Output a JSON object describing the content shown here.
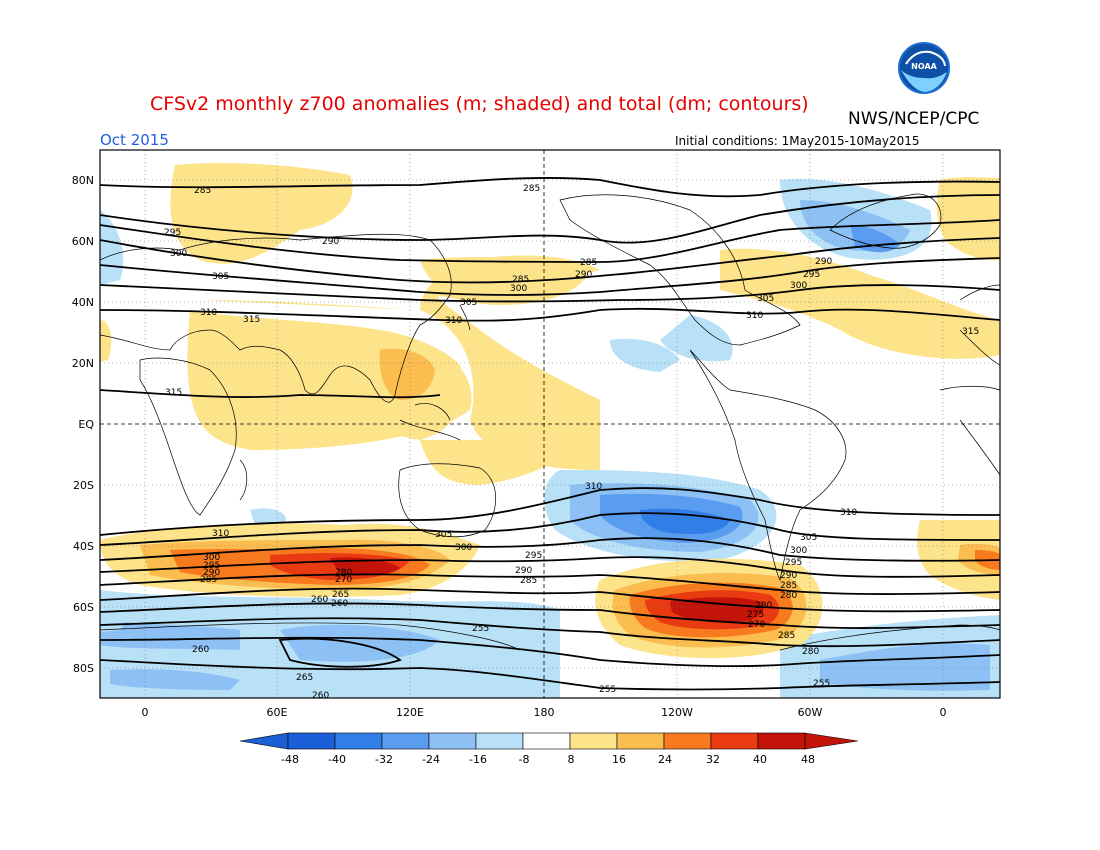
{
  "header": {
    "title": "CFSv2 monthly z700 anomalies (m; shaded) and total (dm; contours)",
    "source": "NWS/NCEP/CPC",
    "month": "Oct 2015",
    "initial_conditions": "Initial conditions: 1May2015-10May2015",
    "logo_text": "NOAA"
  },
  "colors": {
    "title": "#e60000",
    "month": "#1e5fe0",
    "neg48": "#1a5fd6",
    "neg40": "#2f7fe6",
    "neg32": "#5a9cf0",
    "neg24": "#8dc1f5",
    "neg16": "#b8e0f7",
    "neutral": "#ffffff",
    "pos16": "#fde38a",
    "pos24": "#fbbd4f",
    "pos32": "#f77a1f",
    "pos40": "#e93a12",
    "pos48": "#c4140a"
  },
  "axes": {
    "lat_labels": [
      "80N",
      "60N",
      "40N",
      "20N",
      "EQ",
      "20S",
      "40S",
      "60S",
      "80S"
    ],
    "lon_labels": [
      "0",
      "60E",
      "120E",
      "180",
      "120W",
      "60W",
      "0"
    ]
  },
  "colorbar": {
    "labels": [
      "-48",
      "-40",
      "-32",
      "-24",
      "-16",
      "-8",
      "8",
      "16",
      "24",
      "32",
      "40",
      "48"
    ]
  },
  "contour_labels": [
    "285",
    "285",
    "290",
    "295",
    "300",
    "305",
    "310",
    "315",
    "315",
    "285",
    "300",
    "305",
    "310",
    "290",
    "285",
    "290",
    "295",
    "300",
    "305",
    "310",
    "315",
    "310",
    "310",
    "310",
    "305",
    "300",
    "295",
    "290",
    "285",
    "300",
    "295",
    "290",
    "285",
    "280",
    "270",
    "265",
    "260",
    "280",
    "275",
    "270",
    "280",
    "285",
    "290",
    "295",
    "300",
    "305",
    "285",
    "280",
    "260",
    "255",
    "255",
    "260",
    "265",
    "260",
    "255"
  ]
}
